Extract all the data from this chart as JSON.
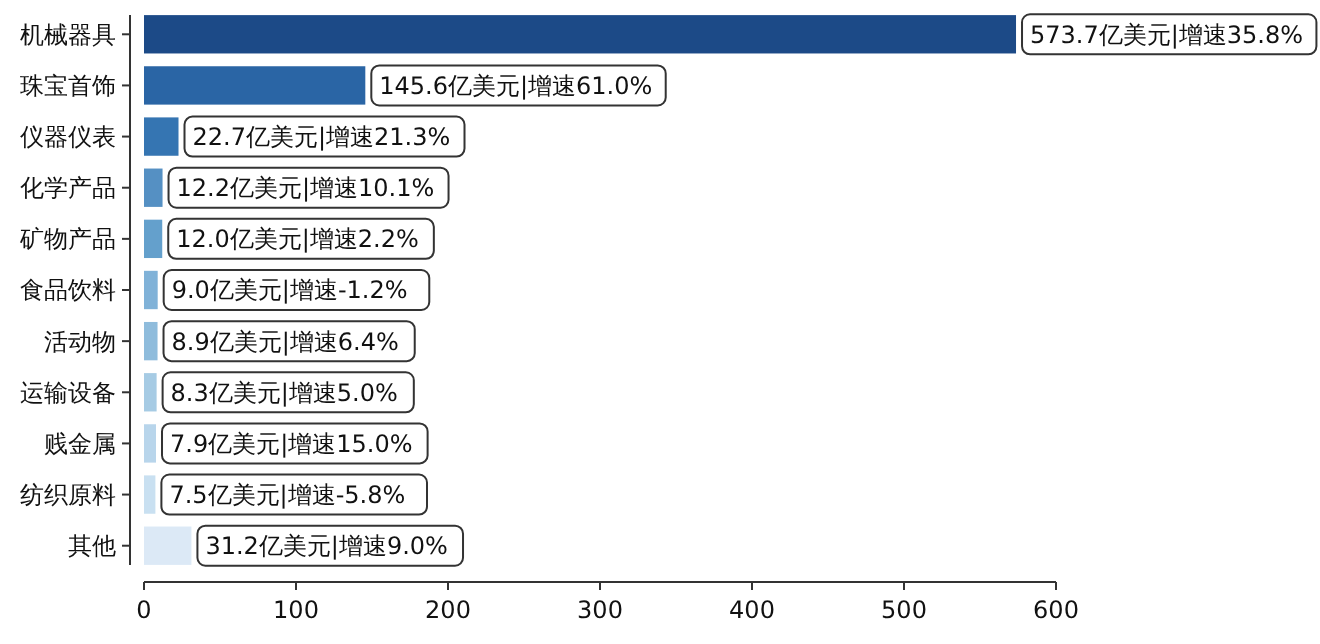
{
  "chart_data": {
    "type": "bar",
    "orientation": "horizontal",
    "categories": [
      "机械器具",
      "珠宝首饰",
      "仪器仪表",
      "化学产品",
      "矿物产品",
      "食品饮料",
      "活动物",
      "运输设备",
      "贱金属",
      "纺织原料",
      "其他"
    ],
    "values": [
      573.7,
      145.6,
      22.7,
      12.2,
      12.0,
      9.0,
      8.9,
      8.3,
      7.9,
      7.5,
      31.2
    ],
    "colors": [
      "#1c4a87",
      "#2a65a5",
      "#3575b2",
      "#5590c3",
      "#64a0cc",
      "#80b2d8",
      "#8fbcdc",
      "#a6cbe4",
      "#b8d5eb",
      "#c9e0f1",
      "#dce9f6"
    ],
    "value_labels": [
      "573.7亿美元|增速35.8%",
      "145.6亿美元|增速61.0%",
      "22.7亿美元|增速21.3%",
      "12.2亿美元|增速10.1%",
      "12.0亿美元|增速2.2%",
      "9.0亿美元|增速-1.2%",
      "8.9亿美元|增速6.4%",
      "8.3亿美元|增速5.0%",
      "7.9亿美元|增速15.0%",
      "7.5亿美元|增速-5.8%",
      "31.2亿美元|增速9.0%"
    ],
    "xlim": [
      0,
      600
    ],
    "xticks": [
      0,
      100,
      200,
      300,
      400,
      500,
      600
    ]
  }
}
